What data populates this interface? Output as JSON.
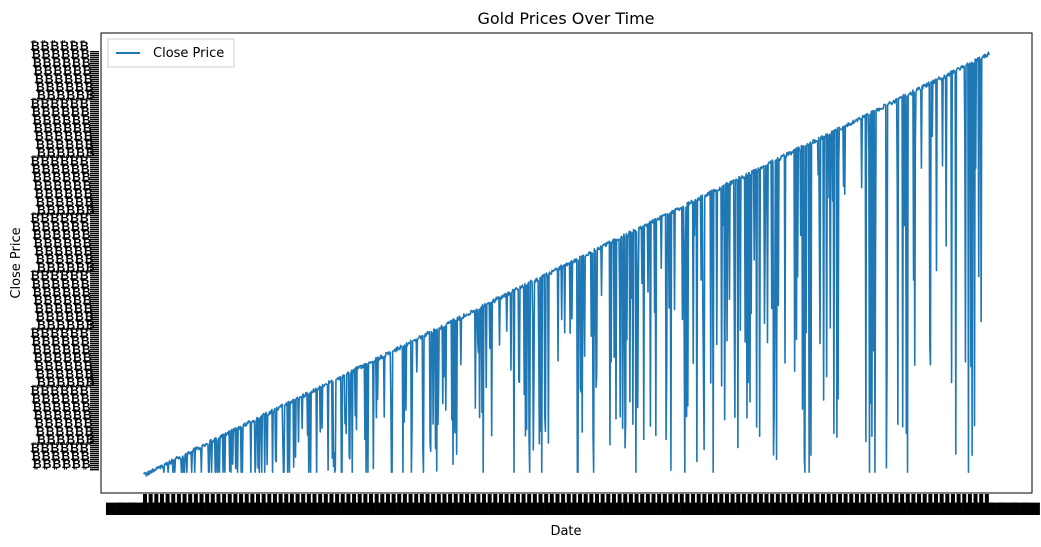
{
  "chart_data": {
    "type": "line",
    "title": "Gold Prices Over Time",
    "xlabel": "Date",
    "ylabel": "Close Price",
    "legend": {
      "placement": "top-left",
      "entries": [
        "Close Price"
      ]
    },
    "grid": false,
    "x_axis": {
      "tick_labels_legible": false,
      "note_visible": "Dense overlapping date tick labels"
    },
    "y_axis": {
      "tick_labels_legible": false,
      "note_visible": "Dense overlapping price tick labels"
    },
    "series": [
      {
        "name": "Close Price",
        "color": "#1f77b4",
        "shape": {
          "start_fraction": 0.0,
          "end_fraction": 1.0,
          "upper_start": 0.0,
          "upper_end": 1.0,
          "drop_floor_min": 0.0,
          "drop_floor_max": 0.02,
          "dense": true
        }
      }
    ]
  }
}
